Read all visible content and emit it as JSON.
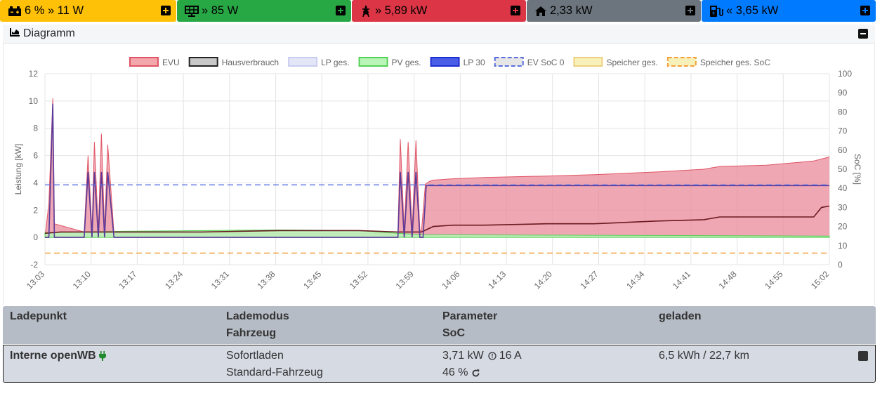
{
  "topbar": {
    "tiles": [
      {
        "icon": "car-battery-icon",
        "text": "6 % » 11 W",
        "bg": "#ffc107",
        "fg": "#000000"
      },
      {
        "icon": "solar-panel-icon",
        "text": "» 85 W",
        "bg": "#28a745",
        "fg": "#000000"
      },
      {
        "icon": "power-grid-icon",
        "text": "» 5,89 kW",
        "bg": "#dc3545",
        "fg": "#000000"
      },
      {
        "icon": "home-icon",
        "text": "2,33 kW",
        "bg": "#6c757d",
        "fg": "#000000"
      },
      {
        "icon": "charging-station-icon",
        "text": "« 3,65 kW",
        "bg": "#007bff",
        "fg": "#000000"
      }
    ]
  },
  "diagram": {
    "title": "Diagramm",
    "icon": "area-chart-icon"
  },
  "chart_data": {
    "type": "area",
    "title": "",
    "ylabel": "Leistung [kW]",
    "y2label": "SoC [%]",
    "ylim": [
      -2,
      12
    ],
    "y2lim": [
      0,
      100
    ],
    "yticks": [
      "-2",
      "0",
      "2",
      "4",
      "6",
      "8",
      "10",
      "12"
    ],
    "y2ticks": [
      "0",
      "10",
      "20",
      "30",
      "40",
      "50",
      "60",
      "70",
      "80",
      "90",
      "100"
    ],
    "xticks": [
      "13:03",
      "13:10",
      "13:17",
      "13:24",
      "13:31",
      "13:38",
      "13:45",
      "13:52",
      "13:59",
      "14:06",
      "14:13",
      "14:20",
      "14:27",
      "14:34",
      "14:41",
      "14:48",
      "14:55",
      "15:02"
    ],
    "grid": true,
    "legend_position": "top",
    "legend": [
      {
        "name": "EVU",
        "fill": "#f4a6ad",
        "stroke": "#e05565",
        "dashed": false
      },
      {
        "name": "Hausverbrauch",
        "fill": "#c8c8c8",
        "stroke": "#222222",
        "dashed": false
      },
      {
        "name": "LP ges.",
        "fill": "#e3e6f6",
        "stroke": "#c9cef0",
        "dashed": false
      },
      {
        "name": "PV ges.",
        "fill": "#b9f5b9",
        "stroke": "#55d055",
        "dashed": false
      },
      {
        "name": "LP 30",
        "fill": "#4a5ee8",
        "stroke": "#1e2fd0",
        "dashed": false
      },
      {
        "name": "EV SoC 0",
        "fill": "#e6e6e6",
        "stroke": "#5a6ee0",
        "dashed": true
      },
      {
        "name": "Speicher ges.",
        "fill": "#f7f0b8",
        "stroke": "#f0d080",
        "dashed": false
      },
      {
        "name": "Speicher ges. SoC",
        "fill": "#f7f0b8",
        "stroke": "#f3a03b",
        "dashed": true
      }
    ],
    "series": [
      {
        "name": "EVU",
        "x": [
          0,
          0.5,
          1,
          1.2,
          5,
          5.5,
          6,
          6.3,
          6.8,
          7.2,
          7.6,
          8,
          8.8,
          12,
          20,
          30,
          40,
          45,
          45.3,
          45.8,
          46.3,
          46.8,
          47.3,
          47.8,
          48,
          48.5,
          49,
          49.5,
          52,
          56,
          64,
          70,
          78,
          84,
          86,
          92,
          98,
          100
        ],
        "y": [
          0,
          2.5,
          10.2,
          1,
          0.4,
          6,
          0.5,
          7,
          0.5,
          7.6,
          0.5,
          6.8,
          0.3,
          0.3,
          0.3,
          0.3,
          0.3,
          0.3,
          7.2,
          0.5,
          7.0,
          0.5,
          7.1,
          0.5,
          0.5,
          3.9,
          4.1,
          4.2,
          4.3,
          4.4,
          4.5,
          4.6,
          4.8,
          5.0,
          5.2,
          5.3,
          5.6,
          5.9
        ]
      },
      {
        "name": "Hausverbrauch",
        "x": [
          0,
          2,
          5,
          10,
          20,
          30,
          40,
          45,
          48,
          49.5,
          52,
          56,
          64,
          70,
          78,
          84,
          86,
          92,
          98,
          99,
          100
        ],
        "y": [
          0.3,
          0.4,
          0.4,
          0.4,
          0.4,
          0.5,
          0.5,
          0.4,
          0.4,
          0.8,
          0.9,
          0.9,
          1.0,
          1.0,
          1.2,
          1.3,
          1.5,
          1.5,
          1.5,
          2.2,
          2.3
        ]
      },
      {
        "name": "PV ges.",
        "x": [
          0,
          5,
          10,
          20,
          30,
          40,
          45,
          48,
          100
        ],
        "y": [
          0.35,
          0.4,
          0.45,
          0.5,
          0.55,
          0.5,
          0.3,
          0.2,
          0.1
        ]
      },
      {
        "name": "LP 30",
        "x": [
          0,
          0.5,
          1,
          1.2,
          5,
          5.5,
          6,
          6.3,
          6.8,
          7.2,
          7.6,
          8,
          8.8,
          45,
          45.3,
          45.8,
          46.3,
          46.8,
          47.3,
          47.8,
          48.2,
          48.6,
          100
        ],
        "y": [
          0,
          0,
          9.8,
          0,
          0,
          4.8,
          0,
          4.8,
          0,
          4.8,
          0,
          4.8,
          0,
          0,
          4.8,
          0,
          4.8,
          0,
          4.8,
          0,
          0,
          3.8,
          3.8
        ]
      },
      {
        "name": "EV SoC 0",
        "x": [
          0,
          100
        ],
        "y": [
          3.85,
          3.85
        ]
      },
      {
        "name": "Speicher ges. SoC",
        "x": [
          0,
          100
        ],
        "y": [
          -1.15,
          -1.15
        ]
      }
    ]
  },
  "table": {
    "headers": {
      "col1": "Ladepunkt",
      "col2_line1": "Lademodus",
      "col2_line2": "Fahrzeug",
      "col3_line1": "Parameter",
      "col3_line2": "SoC",
      "col4": "geladen"
    },
    "row": {
      "name": "Interne openWB",
      "mode": "Sofortladen",
      "vehicle": "Standard-Fahrzeug",
      "power": "3,71 kW",
      "current": "16 A",
      "soc": "46 %",
      "charged": "6,5 kWh / 22,7 km"
    }
  }
}
